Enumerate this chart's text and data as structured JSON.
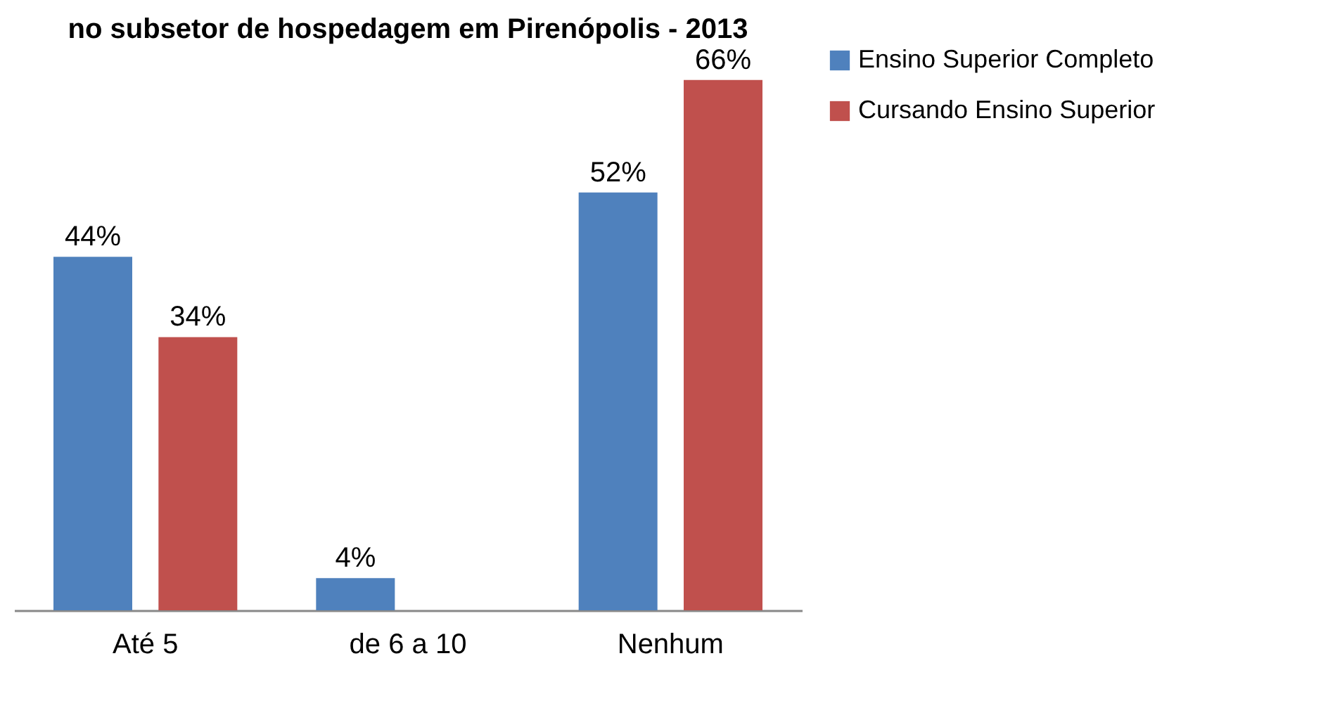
{
  "chart_data": {
    "type": "bar",
    "title": "no subsetor de hospedagem em Pirenópolis - 2013",
    "categories": [
      "Até 5",
      "de 6 a 10",
      "Nenhum"
    ],
    "series": [
      {
        "name": "Ensino Superior Completo",
        "color": "#4f81bd",
        "values": [
          44,
          4,
          52
        ],
        "value_labels": [
          "44%",
          "4%",
          "52%"
        ]
      },
      {
        "name": "Cursando Ensino Superior",
        "color": "#c0504d",
        "values": [
          34,
          null,
          66
        ],
        "value_labels": [
          "34%",
          null,
          "66%"
        ]
      }
    ],
    "legend": "right"
  }
}
